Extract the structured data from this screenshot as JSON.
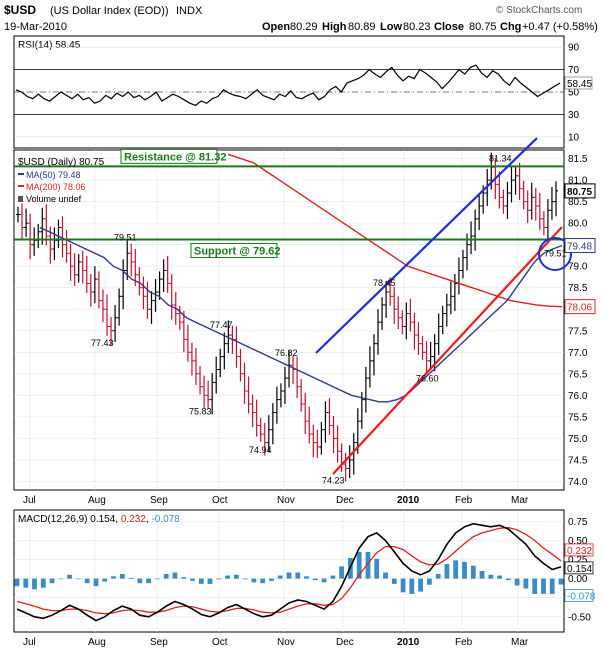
{
  "header": {
    "symbol": "$USD",
    "name": "(US Dollar Index (EOD))",
    "exchange": "INDX",
    "date": "19-Mar-2010",
    "open_label": "Open",
    "open": "80.29",
    "high_label": "High",
    "high": "80.89",
    "low_label": "Low",
    "low": "80.23",
    "close_label": "Close",
    "close": "80.75",
    "chg_label": "Chg",
    "chg": "+0.47 (+0.58%)",
    "watermark": "© StockCharts.com"
  },
  "colors": {
    "price_up": "#000000",
    "price_down": "#c8102e",
    "ma50": "#2b3a8c",
    "ma200": "#e02020",
    "support": "#1a7a1a",
    "trend_blue": "#1a2fd6",
    "trend_red": "#ee1c1c",
    "histogram": "#3a8cc8",
    "macd_signal": "#e02020",
    "macd_line": "#000000",
    "rsi_line": "#000000"
  },
  "rsi": {
    "label": "RSI(14)",
    "value": "58.45",
    "ticks": [
      "90",
      "70",
      "50",
      "30",
      "10"
    ],
    "ylim": [
      0,
      100
    ],
    "values": [
      52,
      50,
      46,
      44,
      48,
      44,
      42,
      46,
      50,
      47,
      44,
      48,
      43,
      45,
      40,
      42,
      47,
      44,
      49,
      46,
      50,
      45,
      47,
      43,
      46,
      50,
      42,
      45,
      48,
      46,
      43,
      40,
      38,
      42,
      40,
      44,
      46,
      52,
      49,
      47,
      46,
      44,
      48,
      52,
      47,
      45,
      43,
      48,
      46,
      51,
      45,
      44,
      47,
      49,
      43,
      46,
      52,
      55,
      50,
      58,
      60,
      62,
      65,
      70,
      66,
      63,
      68,
      72,
      65,
      60,
      64,
      62,
      70,
      67,
      63,
      59,
      53,
      58,
      64,
      70,
      66,
      72,
      74,
      67,
      63,
      69,
      66,
      60,
      56,
      63,
      58,
      54,
      50,
      46,
      49,
      52,
      55,
      58
    ]
  },
  "chart_data": {
    "type": "line",
    "title": "$USD (Daily) 80.75",
    "legend": [
      {
        "name": "MA(50)",
        "value": "79.48"
      },
      {
        "name": "MA(200)",
        "value": "78.06"
      },
      {
        "name": "Volume",
        "value": "undef"
      }
    ],
    "x_ticks": [
      "Jul",
      "Aug",
      "Sep",
      "Oct",
      "Nov",
      "Dec",
      "2010",
      "Feb",
      "Mar"
    ],
    "y_ticks": [
      "74.0",
      "74.5",
      "75.0",
      "75.5",
      "76.0",
      "76.5",
      "77.0",
      "77.5",
      "78.0",
      "78.5",
      "79.0",
      "79.5",
      "80.0",
      "80.5",
      "81.0",
      "81.5"
    ],
    "ylim": [
      73.8,
      81.7
    ],
    "series": [
      {
        "name": "$USD",
        "values": [
          80.2,
          79.9,
          80.0,
          79.5,
          79.6,
          79.8,
          80.1,
          79.7,
          79.4,
          79.6,
          79.9,
          79.5,
          79.3,
          79.0,
          78.8,
          79.1,
          78.9,
          78.6,
          78.4,
          78.7,
          78.2,
          78.0,
          77.6,
          77.5,
          77.8,
          78.3,
          78.9,
          79.3,
          79.1,
          78.8,
          78.5,
          78.3,
          78.0,
          78.2,
          78.4,
          78.7,
          78.9,
          78.6,
          78.1,
          77.9,
          77.7,
          77.3,
          77.0,
          76.8,
          76.5,
          76.2,
          76.0,
          75.9,
          76.3,
          76.6,
          76.9,
          77.2,
          77.4,
          77.3,
          76.9,
          76.5,
          76.1,
          75.8,
          75.6,
          75.3,
          75.1,
          74.9,
          75.2,
          75.6,
          75.9,
          76.1,
          76.4,
          76.7,
          76.6,
          76.2,
          75.8,
          75.4,
          75.1,
          74.9,
          74.8,
          75.2,
          75.6,
          75.3,
          75.0,
          74.7,
          74.4,
          74.3,
          74.5,
          74.9,
          75.4,
          75.9,
          76.4,
          76.8,
          77.2,
          77.7,
          78.1,
          78.4,
          78.3,
          78.0,
          77.8,
          77.6,
          77.9,
          77.7,
          77.4,
          77.2,
          77.0,
          76.8,
          76.9,
          77.2,
          77.6,
          77.9,
          78.1,
          78.3,
          78.6,
          78.9,
          79.2,
          79.5,
          79.7,
          80.1,
          80.4,
          80.7,
          81.0,
          81.3,
          80.9,
          80.6,
          80.4,
          80.7,
          81.0,
          81.1,
          80.8,
          80.5,
          80.3,
          80.6,
          80.4,
          80.1,
          79.9,
          80.3,
          80.5,
          80.75
        ]
      },
      {
        "name": "MA(50)",
        "values": [
          79.9,
          79.8,
          79.7,
          79.6,
          79.5,
          79.4,
          79.3,
          79.2,
          79.0,
          78.9,
          78.7,
          78.6,
          78.4,
          78.3,
          78.1,
          78.0,
          77.8,
          77.7,
          77.6,
          77.5,
          77.4,
          77.3,
          77.2,
          77.1,
          77.0,
          76.9,
          76.8,
          76.7,
          76.6,
          76.5,
          76.4,
          76.3,
          76.2,
          76.1,
          76.0,
          75.95,
          75.9,
          75.85,
          75.85,
          75.9,
          76.0,
          76.2,
          76.4,
          76.6,
          76.8,
          77.0,
          77.2,
          77.4,
          77.6,
          77.8,
          78.0,
          78.2,
          78.5,
          78.8,
          79.1,
          79.3,
          79.4,
          79.48
        ]
      },
      {
        "name": "MA(200)",
        "values": [
          81.6,
          81.5,
          81.4,
          81.2,
          81.0,
          80.8,
          80.6,
          80.4,
          80.2,
          80.0,
          79.8,
          79.6,
          79.4,
          79.2,
          79.0,
          78.9,
          78.8,
          78.7,
          78.6,
          78.5,
          78.4,
          78.3,
          78.2,
          78.15,
          78.1,
          78.07,
          78.06
        ]
      }
    ],
    "annotations": [
      {
        "text": "79.51",
        "value": 79.51
      },
      {
        "text": "77.43",
        "value": 77.43
      },
      {
        "text": "75.83",
        "value": 75.83
      },
      {
        "text": "77.47",
        "value": 77.47
      },
      {
        "text": "74.94",
        "value": 74.94
      },
      {
        "text": "76.82",
        "value": 76.82
      },
      {
        "text": "74.23",
        "value": 74.23
      },
      {
        "text": "78.45",
        "value": 78.45
      },
      {
        "text": "76.60",
        "value": 76.6
      },
      {
        "text": "81.34",
        "value": 81.34
      },
      {
        "text": "79.51",
        "value": 79.51
      }
    ],
    "lines": {
      "resistance": {
        "label": "Resistance @ 81.32",
        "value": 81.32
      },
      "support": {
        "label": "Support @ 79.62",
        "value": 79.62
      }
    },
    "price_tags": {
      "close": "80.75",
      "ma50": "79.48",
      "ma200": "78.06"
    },
    "grid": true
  },
  "macd": {
    "label": "MACD(12,26,9)",
    "macd_value": "0.154",
    "signal_value": "0.232",
    "hist_value": "-0.078",
    "ticks": [
      "0.75",
      "0.50",
      "0.25",
      "0.00",
      "-0.25",
      "-0.50"
    ],
    "ylim": [
      -0.7,
      0.9
    ],
    "macd_line": [
      -0.4,
      -0.45,
      -0.5,
      -0.52,
      -0.48,
      -0.42,
      -0.35,
      -0.4,
      -0.48,
      -0.55,
      -0.5,
      -0.42,
      -0.36,
      -0.4,
      -0.48,
      -0.5,
      -0.44,
      -0.36,
      -0.3,
      -0.34,
      -0.4,
      -0.47,
      -0.5,
      -0.45,
      -0.38,
      -0.34,
      -0.4,
      -0.46,
      -0.5,
      -0.48,
      -0.4,
      -0.32,
      -0.28,
      -0.3,
      -0.35,
      -0.4,
      -0.3,
      -0.1,
      0.15,
      0.4,
      0.55,
      0.6,
      0.5,
      0.35,
      0.2,
      0.1,
      0.05,
      0.1,
      0.25,
      0.45,
      0.6,
      0.68,
      0.72,
      0.7,
      0.68,
      0.7,
      0.65,
      0.55,
      0.45,
      0.3,
      0.2,
      0.12,
      0.154
    ],
    "signal_line": [
      -0.3,
      -0.33,
      -0.36,
      -0.4,
      -0.42,
      -0.42,
      -0.4,
      -0.4,
      -0.42,
      -0.45,
      -0.46,
      -0.45,
      -0.42,
      -0.41,
      -0.42,
      -0.44,
      -0.44,
      -0.42,
      -0.38,
      -0.36,
      -0.37,
      -0.4,
      -0.43,
      -0.44,
      -0.42,
      -0.39,
      -0.39,
      -0.41,
      -0.44,
      -0.45,
      -0.44,
      -0.4,
      -0.36,
      -0.33,
      -0.33,
      -0.35,
      -0.34,
      -0.26,
      -0.12,
      0.05,
      0.2,
      0.34,
      0.42,
      0.42,
      0.38,
      0.3,
      0.22,
      0.18,
      0.19,
      0.26,
      0.36,
      0.46,
      0.55,
      0.6,
      0.63,
      0.66,
      0.67,
      0.64,
      0.58,
      0.5,
      0.4,
      0.32,
      0.232
    ],
    "histogram": [
      -0.1,
      -0.12,
      -0.14,
      -0.12,
      -0.06,
      0.0,
      0.05,
      0.0,
      -0.06,
      -0.1,
      -0.04,
      0.03,
      0.06,
      0.01,
      -0.06,
      -0.06,
      0.0,
      0.06,
      0.08,
      0.02,
      -0.03,
      -0.07,
      -0.07,
      -0.01,
      0.04,
      0.05,
      -0.01,
      -0.05,
      -0.06,
      -0.03,
      0.04,
      0.08,
      0.08,
      0.03,
      -0.02,
      -0.05,
      0.04,
      0.16,
      0.27,
      0.35,
      0.35,
      0.26,
      0.08,
      -0.07,
      -0.18,
      -0.2,
      -0.17,
      -0.08,
      0.06,
      0.19,
      0.24,
      0.22,
      0.17,
      0.1,
      0.05,
      0.04,
      -0.02,
      -0.09,
      -0.13,
      -0.2,
      -0.2,
      -0.2,
      -0.078
    ]
  }
}
